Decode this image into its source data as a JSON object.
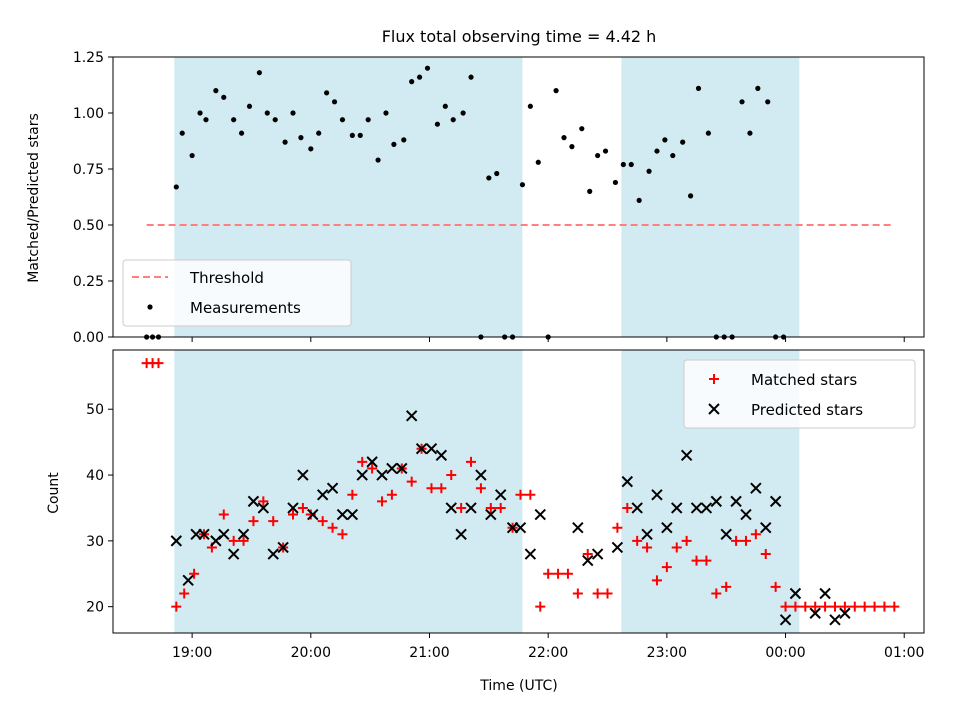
{
  "figure": {
    "title": "Flux total observing time = 4.42 h",
    "xlabel": "Time (UTC)"
  },
  "colors": {
    "shade": "#add8e6",
    "threshold": "#ff7f7f",
    "measurement": "#000000",
    "matched": "#ff0000",
    "predicted": "#000000"
  },
  "chart_data": [
    {
      "type": "scatter",
      "title": "Flux total observing time = 4.42 h",
      "ylabel": "Matched/Predicted stars",
      "xlim": [
        "18:20",
        "01:10"
      ],
      "ylim": [
        0,
        1.25
      ],
      "x_ticks": [
        "19:00",
        "20:00",
        "21:00",
        "22:00",
        "23:00",
        "00:00",
        "01:00"
      ],
      "y_ticks": [
        "0.00",
        "0.25",
        "0.50",
        "0.75",
        "1.00",
        "1.25"
      ],
      "shaded_intervals": [
        [
          "18:51",
          "21:47"
        ],
        [
          "22:37",
          "00:07"
        ]
      ],
      "legend": {
        "position": "lower-left",
        "entries": [
          "Threshold",
          "Measurements"
        ]
      },
      "series": [
        {
          "name": "Threshold",
          "kind": "dashed-line",
          "x": [
            "18:37",
            "00:54"
          ],
          "y": [
            0.5,
            0.5
          ]
        },
        {
          "name": "Measurements",
          "kind": "dots",
          "points": [
            [
              "18:37",
              0
            ],
            [
              "18:40",
              0
            ],
            [
              "18:43",
              0
            ],
            [
              "18:52",
              0.67
            ],
            [
              "18:55",
              0.91
            ],
            [
              "19:00",
              0.81
            ],
            [
              "19:04",
              1.0
            ],
            [
              "19:07",
              0.97
            ],
            [
              "19:12",
              1.1
            ],
            [
              "19:16",
              1.07
            ],
            [
              "19:21",
              0.97
            ],
            [
              "19:25",
              0.91
            ],
            [
              "19:29",
              1.03
            ],
            [
              "19:34",
              1.18
            ],
            [
              "19:38",
              1.0
            ],
            [
              "19:42",
              0.97
            ],
            [
              "19:47",
              0.87
            ],
            [
              "19:51",
              1.0
            ],
            [
              "19:55",
              0.89
            ],
            [
              "20:00",
              0.84
            ],
            [
              "20:04",
              0.91
            ],
            [
              "20:08",
              1.09
            ],
            [
              "20:12",
              1.05
            ],
            [
              "20:16",
              0.97
            ],
            [
              "20:21",
              0.9
            ],
            [
              "20:25",
              0.9
            ],
            [
              "20:29",
              0.97
            ],
            [
              "20:34",
              0.79
            ],
            [
              "20:38",
              1.0
            ],
            [
              "20:42",
              0.86
            ],
            [
              "20:47",
              0.88
            ],
            [
              "20:51",
              1.14
            ],
            [
              "20:55",
              1.16
            ],
            [
              "20:59",
              1.2
            ],
            [
              "21:04",
              0.95
            ],
            [
              "21:08",
              1.03
            ],
            [
              "21:12",
              0.97
            ],
            [
              "21:17",
              1.0
            ],
            [
              "21:21",
              1.16
            ],
            [
              "21:26",
              0
            ],
            [
              "21:30",
              0.71
            ],
            [
              "21:34",
              0.73
            ],
            [
              "21:38",
              0
            ],
            [
              "21:42",
              0
            ],
            [
              "21:47",
              0.68
            ],
            [
              "21:51",
              1.03
            ],
            [
              "21:55",
              0.78
            ],
            [
              "22:00",
              0
            ],
            [
              "22:04",
              1.1
            ],
            [
              "22:08",
              0.89
            ],
            [
              "22:12",
              0.85
            ],
            [
              "22:17",
              0.93
            ],
            [
              "22:21",
              0.65
            ],
            [
              "22:25",
              0.81
            ],
            [
              "22:29",
              0.83
            ],
            [
              "22:34",
              0.69
            ],
            [
              "22:38",
              0.77
            ],
            [
              "22:42",
              0.77
            ],
            [
              "22:46",
              0.61
            ],
            [
              "22:51",
              0.74
            ],
            [
              "22:55",
              0.83
            ],
            [
              "22:59",
              0.88
            ],
            [
              "23:03",
              0.81
            ],
            [
              "23:08",
              0.87
            ],
            [
              "23:12",
              0.63
            ],
            [
              "23:16",
              1.11
            ],
            [
              "23:21",
              0.91
            ],
            [
              "23:25",
              0
            ],
            [
              "23:29",
              0
            ],
            [
              "23:33",
              0
            ],
            [
              "23:38",
              1.05
            ],
            [
              "23:42",
              0.91
            ],
            [
              "23:46",
              1.11
            ],
            [
              "23:51",
              1.05
            ],
            [
              "23:55",
              0
            ],
            [
              "23:59",
              0
            ]
          ]
        }
      ]
    },
    {
      "type": "scatter",
      "ylabel": "Count",
      "xlabel": "Time (UTC)",
      "xlim": [
        "18:20",
        "01:10"
      ],
      "ylim": [
        16,
        59
      ],
      "x_ticks": [
        "19:00",
        "20:00",
        "21:00",
        "22:00",
        "23:00",
        "00:00",
        "01:00"
      ],
      "y_ticks": [
        "20",
        "30",
        "40",
        "50"
      ],
      "shaded_intervals": [
        [
          "18:51",
          "21:47"
        ],
        [
          "22:37",
          "00:07"
        ]
      ],
      "legend": {
        "position": "top-right",
        "entries": [
          "Matched stars",
          "Predicted stars"
        ]
      },
      "series": [
        {
          "name": "Matched stars",
          "marker": "+",
          "points": [
            [
              "18:37",
              57
            ],
            [
              "18:40",
              57
            ],
            [
              "18:43",
              57
            ],
            [
              "18:52",
              20
            ],
            [
              "18:56",
              22
            ],
            [
              "19:01",
              25
            ],
            [
              "19:06",
              31
            ],
            [
              "19:10",
              29
            ],
            [
              "19:16",
              34
            ],
            [
              "19:21",
              30
            ],
            [
              "19:26",
              30
            ],
            [
              "19:31",
              33
            ],
            [
              "19:36",
              36
            ],
            [
              "19:41",
              33
            ],
            [
              "19:46",
              29
            ],
            [
              "19:51",
              34
            ],
            [
              "19:56",
              35
            ],
            [
              "20:00",
              34
            ],
            [
              "20:06",
              33
            ],
            [
              "20:11",
              32
            ],
            [
              "20:16",
              31
            ],
            [
              "20:21",
              37
            ],
            [
              "20:26",
              42
            ],
            [
              "20:31",
              41
            ],
            [
              "20:36",
              36
            ],
            [
              "20:41",
              37
            ],
            [
              "20:46",
              41
            ],
            [
              "20:51",
              39
            ],
            [
              "20:56",
              44
            ],
            [
              "21:01",
              38
            ],
            [
              "21:06",
              38
            ],
            [
              "21:11",
              40
            ],
            [
              "21:16",
              35
            ],
            [
              "21:21",
              42
            ],
            [
              "21:26",
              38
            ],
            [
              "21:31",
              35
            ],
            [
              "21:36",
              35
            ],
            [
              "21:42",
              32
            ],
            [
              "21:46",
              37
            ],
            [
              "21:51",
              37
            ],
            [
              "21:56",
              20
            ],
            [
              "22:00",
              25
            ],
            [
              "22:05",
              25
            ],
            [
              "22:10",
              25
            ],
            [
              "22:15",
              22
            ],
            [
              "22:20",
              28
            ],
            [
              "22:25",
              22
            ],
            [
              "22:30",
              22
            ],
            [
              "22:35",
              32
            ],
            [
              "22:40",
              35
            ],
            [
              "22:45",
              30
            ],
            [
              "22:50",
              29
            ],
            [
              "22:55",
              24
            ],
            [
              "23:00",
              26
            ],
            [
              "23:05",
              29
            ],
            [
              "23:10",
              30
            ],
            [
              "23:15",
              27
            ],
            [
              "23:20",
              27
            ],
            [
              "23:25",
              22
            ],
            [
              "23:30",
              23
            ],
            [
              "23:35",
              30
            ],
            [
              "23:40",
              30
            ],
            [
              "23:45",
              31
            ],
            [
              "23:50",
              28
            ],
            [
              "23:55",
              23
            ],
            [
              "00:00",
              20
            ],
            [
              "00:05",
              20
            ],
            [
              "00:10",
              20
            ],
            [
              "00:15",
              20
            ],
            [
              "00:20",
              20
            ],
            [
              "00:25",
              20
            ],
            [
              "00:30",
              20
            ],
            [
              "00:35",
              20
            ],
            [
              "00:40",
              20
            ],
            [
              "00:45",
              20
            ],
            [
              "00:50",
              20
            ],
            [
              "00:55",
              20
            ]
          ]
        },
        {
          "name": "Predicted stars",
          "marker": "x",
          "points": [
            [
              "18:52",
              30
            ],
            [
              "18:58",
              24
            ],
            [
              "19:02",
              31
            ],
            [
              "19:06",
              31
            ],
            [
              "19:12",
              30
            ],
            [
              "19:16",
              31
            ],
            [
              "19:21",
              28
            ],
            [
              "19:26",
              31
            ],
            [
              "19:31",
              36
            ],
            [
              "19:36",
              35
            ],
            [
              "19:41",
              28
            ],
            [
              "19:46",
              29
            ],
            [
              "19:51",
              35
            ],
            [
              "19:56",
              40
            ],
            [
              "20:01",
              34
            ],
            [
              "20:06",
              37
            ],
            [
              "20:11",
              38
            ],
            [
              "20:16",
              34
            ],
            [
              "20:21",
              34
            ],
            [
              "20:26",
              40
            ],
            [
              "20:31",
              42
            ],
            [
              "20:36",
              40
            ],
            [
              "20:41",
              41
            ],
            [
              "20:46",
              41
            ],
            [
              "20:51",
              49
            ],
            [
              "20:56",
              44
            ],
            [
              "21:01",
              44
            ],
            [
              "21:06",
              43
            ],
            [
              "21:11",
              35
            ],
            [
              "21:16",
              31
            ],
            [
              "21:21",
              35
            ],
            [
              "21:26",
              40
            ],
            [
              "21:31",
              34
            ],
            [
              "21:36",
              37
            ],
            [
              "21:42",
              32
            ],
            [
              "21:46",
              32
            ],
            [
              "21:51",
              28
            ],
            [
              "21:56",
              34
            ],
            [
              "22:15",
              32
            ],
            [
              "22:20",
              27
            ],
            [
              "22:25",
              28
            ],
            [
              "22:35",
              29
            ],
            [
              "22:40",
              39
            ],
            [
              "22:45",
              35
            ],
            [
              "22:50",
              31
            ],
            [
              "22:55",
              37
            ],
            [
              "23:00",
              32
            ],
            [
              "23:05",
              35
            ],
            [
              "23:10",
              43
            ],
            [
              "23:15",
              35
            ],
            [
              "23:20",
              35
            ],
            [
              "23:25",
              36
            ],
            [
              "23:30",
              31
            ],
            [
              "23:35",
              36
            ],
            [
              "23:40",
              34
            ],
            [
              "23:45",
              38
            ],
            [
              "23:50",
              32
            ],
            [
              "23:55",
              36
            ],
            [
              "00:00",
              18
            ],
            [
              "00:05",
              22
            ],
            [
              "00:15",
              19
            ],
            [
              "00:20",
              22
            ],
            [
              "00:25",
              18
            ],
            [
              "00:30",
              19
            ]
          ]
        }
      ]
    }
  ]
}
